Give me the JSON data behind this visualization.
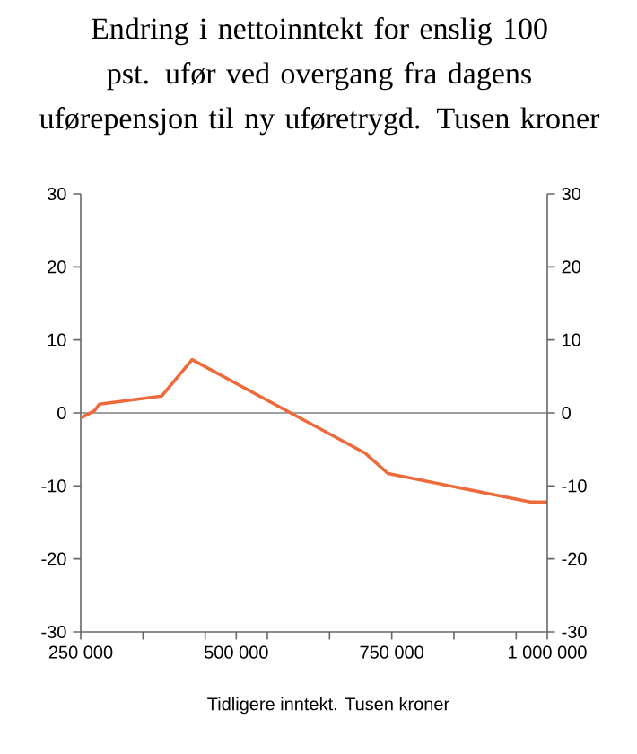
{
  "chart_data": {
    "type": "line",
    "title": "Endring i nettoinntekt for enslig 100 pst. ufør ved overgang fra dagens uførepensjon til ny uføretrygd. Tusen kroner",
    "xlabel": "Tidligere inntekt. Tusen kroner",
    "series": [
      {
        "color": "#ee6a3a",
        "x": [
          250000,
          272000,
          280000,
          380000,
          429000,
          707000,
          744000,
          973000,
          1000000
        ],
        "values": [
          -0.7,
          0.3,
          1.2,
          2.3,
          7.3,
          -5.5,
          -8.3,
          -12.2,
          -12.2
        ]
      }
    ],
    "xlim": [
      250000,
      1000000
    ],
    "xticks": [
      {
        "value": 250000,
        "label": "250 000"
      },
      {
        "value": 350000,
        "label": null
      },
      {
        "value": 450000,
        "label": null
      },
      {
        "value": 500000,
        "label": "500 000"
      },
      {
        "value": 550000,
        "label": null
      },
      {
        "value": 650000,
        "label": null
      },
      {
        "value": 750000,
        "label": "750 000"
      },
      {
        "value": 850000,
        "label": null
      },
      {
        "value": 950000,
        "label": null
      },
      {
        "value": 1000000,
        "label": "1 000 000"
      }
    ],
    "ylim": [
      -30,
      30
    ],
    "yticks": [
      -30,
      -20,
      -10,
      0,
      10,
      20,
      30
    ],
    "y2lim": [
      -30,
      30
    ],
    "y2ticks": [
      -30,
      -20,
      -10,
      0,
      10,
      20,
      30
    ],
    "ref_lines": [
      {
        "axis": "y",
        "value": 0,
        "color": "#808080"
      }
    ],
    "grid": false,
    "marker": "none",
    "line_style": "solid"
  }
}
